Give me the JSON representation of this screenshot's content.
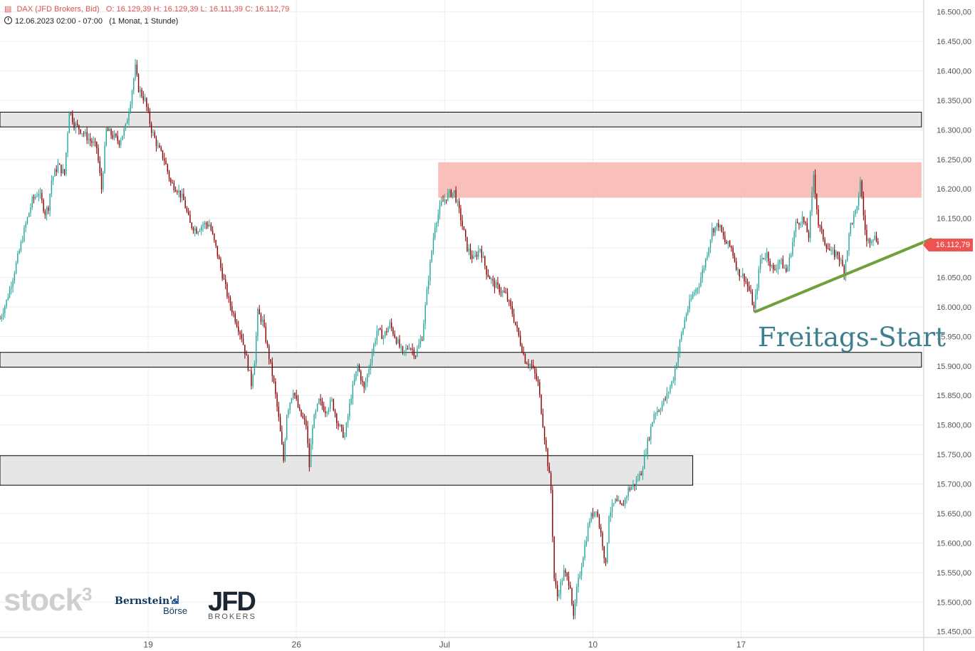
{
  "legend": {
    "instrument": "DAX (JFD Brokers, Bid)",
    "ohlc": "O: 16.129,39  H: 16.129,39  L: 16.111,39  C: 16.112,79",
    "period": "12.06.2023 02:00 - 07:00",
    "interval": "(1 Monat, 1 Stunde)"
  },
  "price_tag": "16.112,79",
  "annotation": "Freitags-Start",
  "logos": {
    "stock3": "stock",
    "stock3_sup": "3",
    "bernstein": "Bernstein's",
    "boerse": "Börse",
    "jfd": "JFD",
    "jfd_sub": "BROKERS"
  },
  "colors": {
    "up": "#26a69a",
    "down": "#8b0000",
    "resistance_zone": "#f8b4ae",
    "trendline": "#6fa03c",
    "annotation": "#3c7f8e",
    "price_tag": "#ef5350"
  },
  "chart_data": {
    "type": "candlestick",
    "title": "DAX (JFD Brokers, Bid)",
    "xlabel": "",
    "ylabel": "",
    "y_axis_position": "right",
    "ylim": [
      15440,
      16520
    ],
    "y_ticks": [
      "16.500,00",
      "16.450,00",
      "16.400,00",
      "16.350,00",
      "16.300,00",
      "16.250,00",
      "16.200,00",
      "16.150,00",
      "16.100,00",
      "16.050,00",
      "16.000,00",
      "15.950,00",
      "15.900,00",
      "15.850,00",
      "15.800,00",
      "15.750,00",
      "15.700,00",
      "15.650,00",
      "15.600,00",
      "15.550,00",
      "15.500,00",
      "15.450,00"
    ],
    "y_tick_values": [
      16500,
      16450,
      16400,
      16350,
      16300,
      16250,
      16200,
      16150,
      16100,
      16050,
      16000,
      15950,
      15900,
      15850,
      15800,
      15750,
      15700,
      15650,
      15600,
      15550,
      15500,
      15450
    ],
    "x_ticks": [
      "19",
      "26",
      "Jul",
      "10",
      "17"
    ],
    "x_tick_index": [
      92,
      184,
      276,
      368,
      460
    ],
    "last_close": 16112.79,
    "zones": [
      {
        "type": "support-resistance",
        "from": 16305,
        "to": 16330,
        "start_index": 0,
        "end_index": 572
      },
      {
        "type": "resistance",
        "from": 16185,
        "to": 16245,
        "start_index": 272,
        "end_index": 572
      },
      {
        "type": "support-resistance",
        "from": 15898,
        "to": 15923,
        "start_index": 0,
        "end_index": 572
      },
      {
        "type": "support",
        "from": 15698,
        "to": 15748,
        "start_index": 0,
        "end_index": 430
      }
    ],
    "trendline": {
      "x1_index": 469,
      "y1": 15992,
      "x2_index": 574,
      "y2": 16110
    },
    "price_path": [
      [
        0,
        15980
      ],
      [
        4,
        16010
      ],
      [
        8,
        16050
      ],
      [
        12,
        16095
      ],
      [
        16,
        16140
      ],
      [
        20,
        16180
      ],
      [
        24,
        16195
      ],
      [
        28,
        16160
      ],
      [
        30,
        16170
      ],
      [
        32,
        16215
      ],
      [
        36,
        16240
      ],
      [
        40,
        16225
      ],
      [
        43,
        16335
      ],
      [
        46,
        16310
      ],
      [
        50,
        16300
      ],
      [
        55,
        16285
      ],
      [
        60,
        16270
      ],
      [
        63,
        16200
      ],
      [
        66,
        16300
      ],
      [
        70,
        16290
      ],
      [
        74,
        16280
      ],
      [
        78,
        16305
      ],
      [
        81,
        16350
      ],
      [
        84,
        16405
      ],
      [
        86,
        16370
      ],
      [
        90,
        16350
      ],
      [
        94,
        16300
      ],
      [
        98,
        16270
      ],
      [
        102,
        16250
      ],
      [
        106,
        16210
      ],
      [
        110,
        16200
      ],
      [
        114,
        16180
      ],
      [
        118,
        16140
      ],
      [
        122,
        16130
      ],
      [
        126,
        16140
      ],
      [
        130,
        16140
      ],
      [
        134,
        16100
      ],
      [
        138,
        16055
      ],
      [
        142,
        16010
      ],
      [
        146,
        15980
      ],
      [
        150,
        15950
      ],
      [
        154,
        15900
      ],
      [
        156,
        15870
      ],
      [
        158,
        15910
      ],
      [
        160,
        15990
      ],
      [
        163,
        15975
      ],
      [
        166,
        15930
      ],
      [
        170,
        15870
      ],
      [
        173,
        15810
      ],
      [
        176,
        15740
      ],
      [
        178,
        15820
      ],
      [
        182,
        15860
      ],
      [
        186,
        15820
      ],
      [
        190,
        15800
      ],
      [
        192,
        15730
      ],
      [
        194,
        15800
      ],
      [
        198,
        15840
      ],
      [
        202,
        15825
      ],
      [
        206,
        15840
      ],
      [
        210,
        15800
      ],
      [
        214,
        15780
      ],
      [
        218,
        15850
      ],
      [
        222,
        15900
      ],
      [
        226,
        15860
      ],
      [
        230,
        15910
      ],
      [
        234,
        15960
      ],
      [
        238,
        15950
      ],
      [
        242,
        15970
      ],
      [
        246,
        15945
      ],
      [
        250,
        15920
      ],
      [
        254,
        15935
      ],
      [
        258,
        15920
      ],
      [
        262,
        15950
      ],
      [
        266,
        16050
      ],
      [
        270,
        16140
      ],
      [
        274,
        16175
      ],
      [
        278,
        16190
      ],
      [
        282,
        16195
      ],
      [
        286,
        16150
      ],
      [
        290,
        16100
      ],
      [
        294,
        16080
      ],
      [
        298,
        16100
      ],
      [
        302,
        16060
      ],
      [
        306,
        16040
      ],
      [
        310,
        16030
      ],
      [
        314,
        16020
      ],
      [
        318,
        15990
      ],
      [
        322,
        15950
      ],
      [
        326,
        15910
      ],
      [
        330,
        15900
      ],
      [
        334,
        15870
      ],
      [
        338,
        15780
      ],
      [
        342,
        15690
      ],
      [
        344,
        15540
      ],
      [
        346,
        15510
      ],
      [
        350,
        15550
      ],
      [
        354,
        15530
      ],
      [
        356,
        15470
      ],
      [
        358,
        15520
      ],
      [
        362,
        15580
      ],
      [
        366,
        15640
      ],
      [
        370,
        15660
      ],
      [
        374,
        15600
      ],
      [
        376,
        15560
      ],
      [
        378,
        15650
      ],
      [
        382,
        15670
      ],
      [
        386,
        15660
      ],
      [
        390,
        15690
      ],
      [
        394,
        15700
      ],
      [
        398,
        15720
      ],
      [
        402,
        15770
      ],
      [
        406,
        15820
      ],
      [
        410,
        15830
      ],
      [
        414,
        15850
      ],
      [
        418,
        15880
      ],
      [
        422,
        15940
      ],
      [
        426,
        15990
      ],
      [
        430,
        16020
      ],
      [
        434,
        16040
      ],
      [
        438,
        16080
      ],
      [
        442,
        16130
      ],
      [
        446,
        16140
      ],
      [
        450,
        16110
      ],
      [
        454,
        16100
      ],
      [
        458,
        16060
      ],
      [
        462,
        16050
      ],
      [
        466,
        16020
      ],
      [
        468,
        15995
      ],
      [
        472,
        16080
      ],
      [
        476,
        16090
      ],
      [
        480,
        16060
      ],
      [
        484,
        16080
      ],
      [
        488,
        16060
      ],
      [
        490,
        16080
      ],
      [
        494,
        16140
      ],
      [
        498,
        16150
      ],
      [
        502,
        16120
      ],
      [
        505,
        16225
      ],
      [
        508,
        16140
      ],
      [
        512,
        16110
      ],
      [
        516,
        16090
      ],
      [
        520,
        16090
      ],
      [
        524,
        16060
      ],
      [
        528,
        16140
      ],
      [
        532,
        16165
      ],
      [
        534,
        16215
      ],
      [
        536,
        16155
      ],
      [
        538,
        16110
      ],
      [
        542,
        16120
      ],
      [
        545,
        16113
      ]
    ]
  }
}
